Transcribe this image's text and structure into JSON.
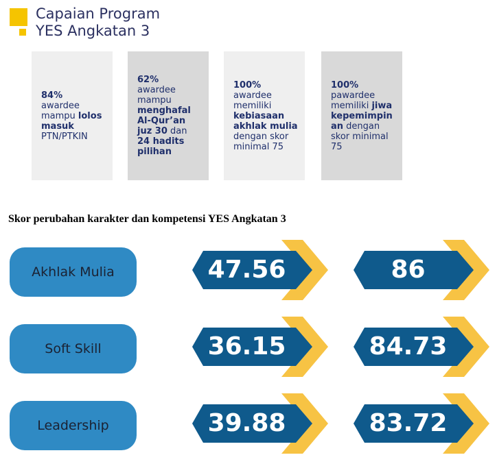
{
  "header": {
    "title_lines": [
      "Capaian Program",
      "YES Angkatan 3"
    ]
  },
  "cards": [
    {
      "lines": [
        [
          {
            "text": "84%",
            "bold": true
          }
        ],
        [
          {
            "text": "awardee",
            "bold": false
          }
        ],
        [
          {
            "text": "mampu ",
            "bold": false
          },
          {
            "text": "lolos",
            "bold": true
          }
        ],
        [
          {
            "text": "masuk",
            "bold": true
          }
        ],
        [
          {
            "text": "PTN/PTKIN",
            "bold": false
          }
        ]
      ]
    },
    {
      "lines": [
        [
          {
            "text": "62%",
            "bold": true
          }
        ],
        [
          {
            "text": "awardee",
            "bold": false
          }
        ],
        [
          {
            "text": "mampu",
            "bold": false
          }
        ],
        [
          {
            "text": "menghafal",
            "bold": true
          }
        ],
        [
          {
            "text": "Al-Qur’an",
            "bold": true
          }
        ],
        [
          {
            "text": "juz 30",
            "bold": true
          },
          {
            "text": " dan",
            "bold": false
          }
        ],
        [
          {
            "text": "24 hadits",
            "bold": true
          }
        ],
        [
          {
            "text": "pilihan",
            "bold": true
          }
        ]
      ]
    },
    {
      "lines": [
        [
          {
            "text": "100%",
            "bold": true
          }
        ],
        [
          {
            "text": "awardee",
            "bold": false
          }
        ],
        [
          {
            "text": "memiliki",
            "bold": false
          }
        ],
        [
          {
            "text": "kebiasaan",
            "bold": true
          }
        ],
        [
          {
            "text": "akhlak mulia",
            "bold": true
          }
        ],
        [
          {
            "text": "dengan skor",
            "bold": false
          }
        ],
        [
          {
            "text": "minimal 75",
            "bold": false
          }
        ]
      ]
    },
    {
      "lines": [
        [
          {
            "text": "100%",
            "bold": true
          }
        ],
        [
          {
            "text": "pawardee",
            "bold": false
          }
        ],
        [
          {
            "text": "memiliki ",
            "bold": false
          },
          {
            "text": "jiwa",
            "bold": true
          }
        ],
        [
          {
            "text": "kepemimpin",
            "bold": true
          }
        ],
        [
          {
            "text": "an",
            "bold": true
          },
          {
            "text": " dengan",
            "bold": false
          }
        ],
        [
          {
            "text": "skor minimal",
            "bold": false
          }
        ],
        [
          {
            "text": "75",
            "bold": false
          }
        ]
      ]
    }
  ],
  "section": {
    "heading": "Skor perubahan karakter dan kompetensi YES Angkatan 3",
    "rows": [
      {
        "label": "Akhlak Mulia",
        "values": [
          47.56,
          86
        ]
      },
      {
        "label": "Soft Skill",
        "values": [
          36.15,
          84.73
        ]
      },
      {
        "label": "Leadership",
        "values": [
          39.88,
          83.72
        ]
      }
    ]
  }
}
